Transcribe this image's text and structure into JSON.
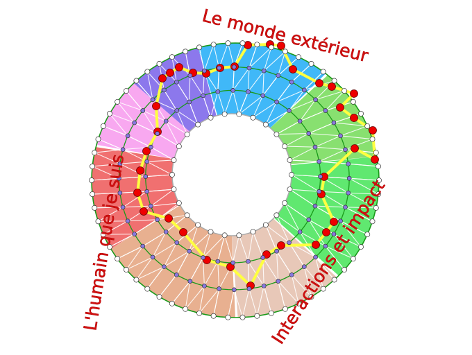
{
  "labels": {
    "top": "Le monde extérieur",
    "left": "L'humain que je suis",
    "right": "Interactions et impact"
  },
  "colors": {
    "label": "#d01010",
    "ring_line": "#1a9a1a",
    "path": "#ffff40",
    "path_node": "#ee0000",
    "inner_node": "#8878e0",
    "outer_node": "#ffffff",
    "sectors": [
      "#40b8f8",
      "#88e070",
      "#60e870",
      "#e8c8b8",
      "#e8b090",
      "#f07070",
      "#f8a8f0",
      "#8c78ec"
    ]
  }
}
